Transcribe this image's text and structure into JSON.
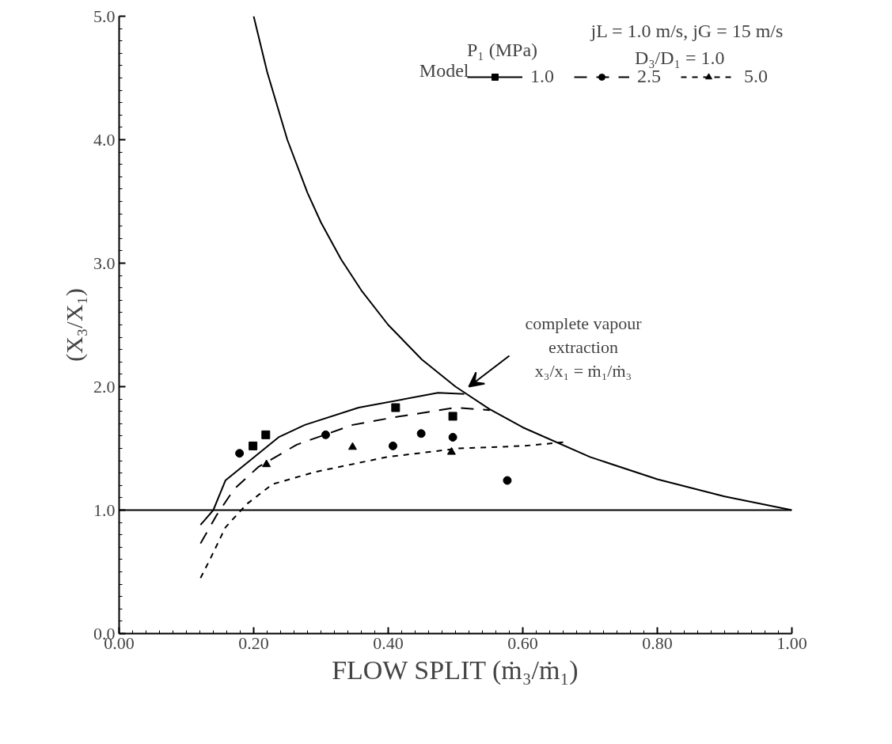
{
  "chart_data": {
    "type": "scatter",
    "xlabel": "FLOW SPLIT (ṁ₃/ṁ₁)",
    "ylabel": "(X₃/X₁)",
    "legend_title": "P₁ (MPa)",
    "xlim": [
      0.0,
      1.0
    ],
    "ylim": [
      0.0,
      5.0
    ],
    "xticks": [
      {
        "value": 0.0,
        "label": "0.00"
      },
      {
        "value": 0.2,
        "label": "0.20"
      },
      {
        "value": 0.4,
        "label": "0.40"
      },
      {
        "value": 0.6,
        "label": "0.60"
      },
      {
        "value": 0.8,
        "label": "0.80"
      },
      {
        "value": 1.0,
        "label": "1.00"
      }
    ],
    "yticks": [
      {
        "value": 0.0,
        "label": "0.0"
      },
      {
        "value": 1.0,
        "label": "1.0"
      },
      {
        "value": 2.0,
        "label": "2.0"
      },
      {
        "value": 3.0,
        "label": "3.0"
      },
      {
        "value": 4.0,
        "label": "4.0"
      },
      {
        "value": 5.0,
        "label": "5.0"
      }
    ],
    "grid": false,
    "legend": "top right",
    "series": [
      {
        "name": "1.0",
        "marker": "square",
        "color": "#000000",
        "x": [
          0.199,
          0.218,
          0.411,
          0.496
        ],
        "values": [
          1.52,
          1.61,
          1.83,
          1.76
        ]
      },
      {
        "name": "2.5",
        "marker": "circle",
        "color": "#000000",
        "x": [
          0.179,
          0.307,
          0.407,
          0.449,
          0.496,
          0.577
        ],
        "values": [
          1.46,
          1.61,
          1.52,
          1.62,
          1.59,
          1.24
        ]
      },
      {
        "name": "5.0",
        "marker": "triangle",
        "color": "#000000",
        "x": [
          0.219,
          0.347,
          0.494
        ],
        "values": [
          1.37,
          1.51,
          1.47
        ]
      },
      {
        "type": "line",
        "line_style": "solid",
        "color": "#000000",
        "x": [
          0.121,
          0.14,
          0.158,
          0.237,
          0.276,
          0.356,
          0.474,
          0.513
        ],
        "values": [
          0.88,
          1.0,
          1.24,
          1.59,
          1.69,
          1.83,
          1.95,
          1.94
        ]
      },
      {
        "type": "line",
        "line_style": "dashed",
        "color": "#000000",
        "x": [
          0.121,
          0.145,
          0.171,
          0.207,
          0.264,
          0.347,
          0.407,
          0.5,
          0.551
        ],
        "values": [
          0.73,
          0.96,
          1.17,
          1.35,
          1.53,
          1.69,
          1.75,
          1.83,
          1.81
        ]
      },
      {
        "type": "line",
        "line_style": "dotted",
        "color": "#000000",
        "x": [
          0.121,
          0.135,
          0.158,
          0.173,
          0.19,
          0.228,
          0.292,
          0.398,
          0.505,
          0.602,
          0.66
        ],
        "values": [
          0.45,
          0.6,
          0.86,
          0.95,
          1.05,
          1.21,
          1.31,
          1.43,
          1.5,
          1.52,
          1.55
        ]
      },
      {
        "type": "line",
        "line_style": "solid",
        "color": "#000000",
        "x": [
          0.2,
          0.22,
          0.25,
          0.28,
          0.3,
          0.33,
          0.36,
          0.4,
          0.45,
          0.5,
          0.55,
          0.6,
          0.7,
          0.8,
          0.9,
          1.0
        ],
        "values": [
          5.0,
          4.55,
          4.0,
          3.57,
          3.33,
          3.03,
          2.78,
          2.5,
          2.22,
          2.0,
          1.82,
          1.67,
          1.43,
          1.25,
          1.11,
          1.0
        ]
      }
    ],
    "ref_lines": [
      {
        "axis": "y",
        "value": 1.0,
        "color": "#000000",
        "line_style": "solid"
      }
    ],
    "annotations": [
      "jL = 1.0 m/s,  jG = 15 m/s",
      "D₃/D₁ = 1.0",
      "Model",
      "complete vapour\nextraction\nx₃/x₁ = ṁ₁/ṁ₃"
    ]
  }
}
